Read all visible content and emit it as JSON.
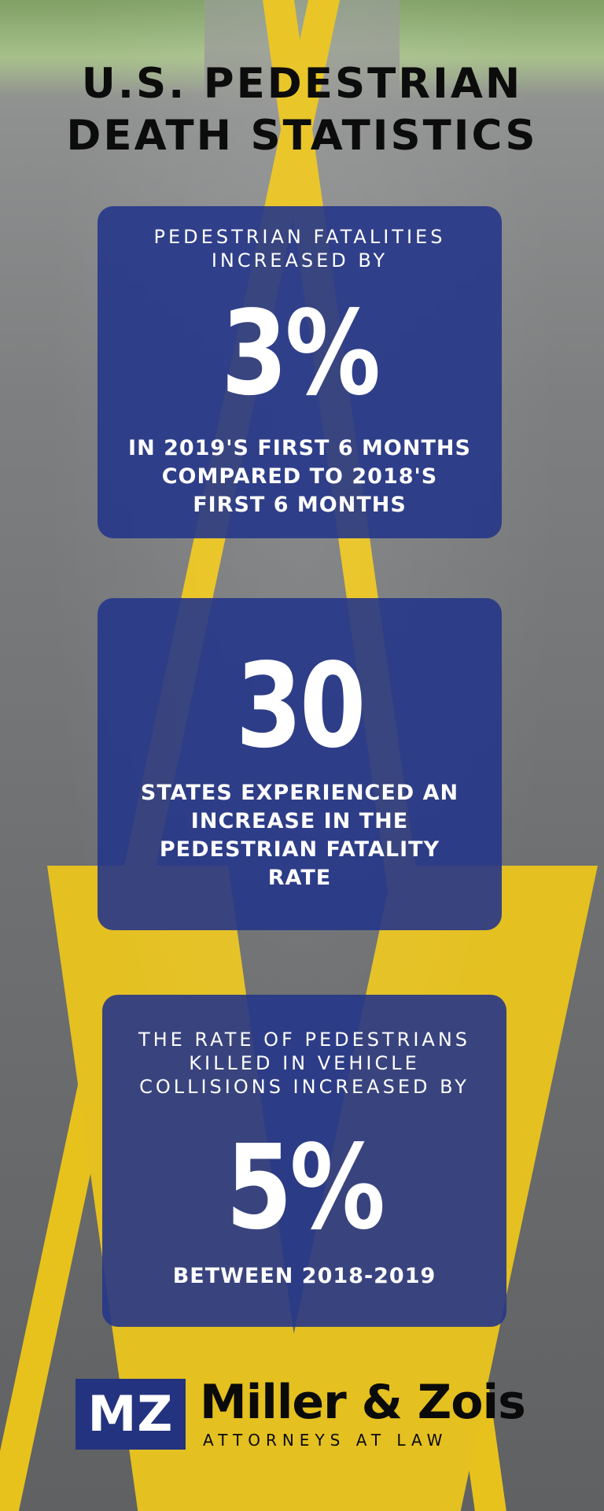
{
  "title": "U.S. PEDESTRIAN\nDEATH STATISTICS",
  "cards": [
    {
      "kicker": "PEDESTRIAN FATALITIES\nINCREASED BY",
      "big": "3%",
      "sub": "IN 2019'S FIRST 6 MONTHS\nCOMPARED TO 2018'S\nFIRST 6 MONTHS"
    },
    {
      "big": "30",
      "sub": "STATES EXPERIENCED AN\nINCREASE IN THE\nPEDESTRIAN FATALITY\nRATE"
    },
    {
      "kicker": "THE RATE OF PEDESTRIANS\nKILLED IN VEHICLE\nCOLLISIONS INCREASED BY",
      "big": "5%",
      "sub": "BETWEEN 2018-2019"
    }
  ],
  "logo": {
    "mark": "MZ",
    "brand": "Miller & Zois",
    "tagline": "ATTORNEYS AT LAW"
  },
  "colors": {
    "card": "#263688",
    "road_line": "#e8c21c",
    "title": "#0c0c0c"
  }
}
